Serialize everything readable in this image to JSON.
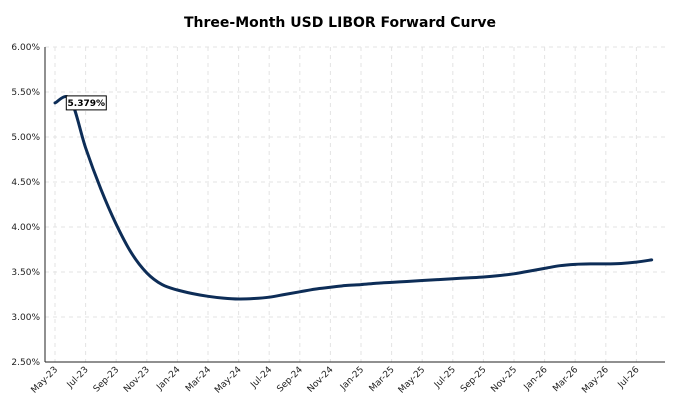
{
  "chart_data": {
    "type": "line",
    "title": "Three-Month USD LIBOR Forward Curve",
    "xlabel": "",
    "ylabel": "",
    "ylim": [
      2.5,
      6.0
    ],
    "yticks": [
      "2.50%",
      "3.00%",
      "3.50%",
      "4.00%",
      "4.50%",
      "5.00%",
      "5.50%",
      "6.00%"
    ],
    "yticks_values": [
      2.5,
      3.0,
      3.5,
      4.0,
      4.5,
      5.0,
      5.5,
      6.0
    ],
    "xtick_labels": [
      "May-23",
      "Jul-23",
      "Sep-23",
      "Nov-23",
      "Jan-24",
      "Mar-24",
      "May-24",
      "Jul-24",
      "Sep-24",
      "Nov-24",
      "Jan-25",
      "Mar-25",
      "May-25",
      "Jul-25",
      "Sep-25",
      "Nov-25",
      "Jan-26",
      "Mar-26",
      "May-26",
      "Jul-26"
    ],
    "grid": true,
    "annotation": {
      "text": "5.379%",
      "x": "Jun-23",
      "y": 5.379
    },
    "series": [
      {
        "color": "#0d2d57",
        "x": [
          "May-23",
          "Jun-23",
          "Jul-23",
          "Aug-23",
          "Sep-23",
          "Oct-23",
          "Nov-23",
          "Dec-23",
          "Jan-24",
          "Feb-24",
          "Mar-24",
          "Apr-24",
          "May-24",
          "Jun-24",
          "Jul-24",
          "Aug-24",
          "Sep-24",
          "Oct-24",
          "Nov-24",
          "Dec-24",
          "Jan-25",
          "Feb-25",
          "Mar-25",
          "Apr-25",
          "May-25",
          "Jun-25",
          "Jul-25",
          "Aug-25",
          "Sep-25",
          "Oct-25",
          "Nov-25",
          "Dec-25",
          "Jan-26",
          "Feb-26",
          "Mar-26",
          "Apr-26",
          "May-26",
          "Jun-26",
          "Jul-26",
          "Aug-26"
        ],
        "values": [
          5.379,
          5.42,
          4.88,
          4.42,
          4.03,
          3.71,
          3.49,
          3.36,
          3.3,
          3.26,
          3.23,
          3.21,
          3.2,
          3.205,
          3.22,
          3.25,
          3.28,
          3.31,
          3.33,
          3.35,
          3.36,
          3.375,
          3.385,
          3.395,
          3.405,
          3.415,
          3.425,
          3.435,
          3.445,
          3.46,
          3.48,
          3.51,
          3.54,
          3.57,
          3.585,
          3.59,
          3.59,
          3.595,
          3.61,
          3.635
        ]
      }
    ]
  }
}
